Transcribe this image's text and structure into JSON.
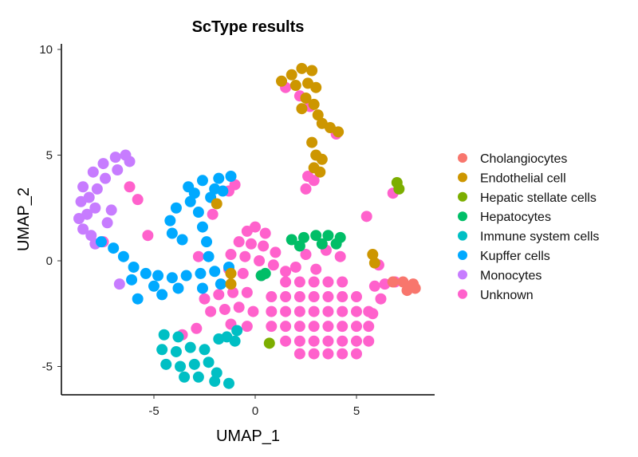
{
  "chart_data": {
    "type": "scatter",
    "title": "ScType results",
    "xlabel": "UMAP_1",
    "ylabel": "UMAP_2",
    "xlim": [
      -9.6,
      8.9
    ],
    "ylim": [
      -6.3,
      10.3
    ],
    "xticks": [
      -5,
      0,
      5
    ],
    "yticks": [
      -5,
      0,
      5,
      10
    ],
    "grid": false,
    "legend_position": "right",
    "series": [
      {
        "name": "Unknown",
        "color": "#FF61CC",
        "points": [
          [
            -0.4,
            1.4
          ],
          [
            0,
            1.6
          ],
          [
            0.5,
            1.3
          ],
          [
            -0.8,
            0.9
          ],
          [
            -0.2,
            0.8
          ],
          [
            0.4,
            0.7
          ],
          [
            1,
            0.4
          ],
          [
            -1.2,
            0.3
          ],
          [
            -0.5,
            0.2
          ],
          [
            0.2,
            0
          ],
          [
            0.9,
            -0.2
          ],
          [
            1.5,
            -0.5
          ],
          [
            -1.3,
            -0.4
          ],
          [
            -0.6,
            -0.6
          ],
          [
            0.3,
            -0.7
          ],
          [
            -2.5,
            -1.8
          ],
          [
            -1.8,
            -1.6
          ],
          [
            -1.1,
            -1.5
          ],
          [
            -0.4,
            -1.5
          ],
          [
            -2.2,
            -2.4
          ],
          [
            -1.5,
            -2.3
          ],
          [
            -0.8,
            -2.2
          ],
          [
            -0.1,
            -2.4
          ],
          [
            -1.2,
            -3
          ],
          [
            -0.4,
            -3.1
          ],
          [
            -2.9,
            -3.2
          ],
          [
            -3.6,
            -3.5
          ],
          [
            1.5,
            -1.0
          ],
          [
            2.2,
            -1.0
          ],
          [
            2.9,
            -1.0
          ],
          [
            3.6,
            -1.0
          ],
          [
            4.3,
            -1.0
          ],
          [
            0.8,
            -1.7
          ],
          [
            1.5,
            -1.7
          ],
          [
            2.2,
            -1.7
          ],
          [
            2.9,
            -1.7
          ],
          [
            3.6,
            -1.7
          ],
          [
            4.3,
            -1.7
          ],
          [
            5.0,
            -1.7
          ],
          [
            0.8,
            -2.4
          ],
          [
            1.5,
            -2.4
          ],
          [
            2.2,
            -2.4
          ],
          [
            2.9,
            -2.4
          ],
          [
            3.6,
            -2.4
          ],
          [
            4.3,
            -2.4
          ],
          [
            5.0,
            -2.4
          ],
          [
            5.6,
            -2.4
          ],
          [
            0.8,
            -3.1
          ],
          [
            1.5,
            -3.1
          ],
          [
            2.2,
            -3.1
          ],
          [
            2.9,
            -3.1
          ],
          [
            3.6,
            -3.1
          ],
          [
            4.3,
            -3.1
          ],
          [
            5.0,
            -3.1
          ],
          [
            5.6,
            -3.1
          ],
          [
            1.5,
            -3.8
          ],
          [
            2.2,
            -3.8
          ],
          [
            2.9,
            -3.8
          ],
          [
            3.6,
            -3.8
          ],
          [
            4.3,
            -3.8
          ],
          [
            5.0,
            -3.8
          ],
          [
            5.6,
            -3.8
          ],
          [
            2.2,
            -4.4
          ],
          [
            2.9,
            -4.4
          ],
          [
            3.6,
            -4.4
          ],
          [
            4.3,
            -4.4
          ],
          [
            5.0,
            -4.4
          ],
          [
            2.5,
            0.3
          ],
          [
            3.5,
            0.5
          ],
          [
            4.2,
            0.2
          ],
          [
            3,
            -0.4
          ],
          [
            2,
            -0.3
          ],
          [
            5.9,
            -1.2
          ],
          [
            6.4,
            -1.1
          ],
          [
            6.9,
            -1.0
          ],
          [
            6.2,
            -1.8
          ],
          [
            5.8,
            -2.5
          ],
          [
            5.5,
            2.1
          ],
          [
            6.1,
            -0.2
          ],
          [
            1.5,
            8.2
          ],
          [
            2.2,
            7.8
          ],
          [
            2.7,
            7.3
          ],
          [
            2.6,
            4
          ],
          [
            2.5,
            3.4
          ],
          [
            2.9,
            3.8
          ],
          [
            4,
            6
          ],
          [
            -7.5,
            0.9
          ],
          [
            -6.2,
            3.5
          ],
          [
            -5.8,
            2.9
          ],
          [
            -5.3,
            1.2
          ],
          [
            -1.3,
            3.3
          ],
          [
            -1,
            3.6
          ],
          [
            -2.1,
            2.2
          ],
          [
            -2.8,
            0.2
          ],
          [
            6.8,
            3.2
          ]
        ]
      },
      {
        "name": "Monocytes",
        "color": "#C77CFF",
        "points": [
          [
            -7.5,
            4.6
          ],
          [
            -6.9,
            4.9
          ],
          [
            -6.4,
            5.0
          ],
          [
            -6.2,
            4.7
          ],
          [
            -8.0,
            4.2
          ],
          [
            -8.5,
            3.5
          ],
          [
            -8.6,
            2.8
          ],
          [
            -8.7,
            2.0
          ],
          [
            -8.5,
            1.5
          ],
          [
            -8.1,
            1.2
          ],
          [
            -7.9,
            2.5
          ],
          [
            -7.8,
            3.4
          ],
          [
            -7.4,
            3.9
          ],
          [
            -7.3,
            1.8
          ],
          [
            -7.1,
            2.4
          ],
          [
            -6.8,
            4.3
          ],
          [
            -7.9,
            0.8
          ],
          [
            -6.7,
            -1.1
          ],
          [
            -8.2,
            3.0
          ],
          [
            -8.3,
            2.2
          ]
        ]
      },
      {
        "name": "Kupffer cells",
        "color": "#00A9FF",
        "points": [
          [
            -7.6,
            0.9
          ],
          [
            -7.0,
            0.6
          ],
          [
            -6.5,
            0.2
          ],
          [
            -6.0,
            -0.3
          ],
          [
            -5.4,
            -0.6
          ],
          [
            -4.8,
            -0.7
          ],
          [
            -4.1,
            -0.8
          ],
          [
            -3.4,
            -0.7
          ],
          [
            -2.7,
            -0.6
          ],
          [
            -2.0,
            -0.5
          ],
          [
            -1.3,
            -0.3
          ],
          [
            -6.1,
            -0.9
          ],
          [
            -5.0,
            -1.2
          ],
          [
            -3.8,
            -1.3
          ],
          [
            -2.6,
            -1.3
          ],
          [
            -1.7,
            -1.1
          ],
          [
            -2.3,
            0.2
          ],
          [
            -2.4,
            0.9
          ],
          [
            -2.6,
            1.6
          ],
          [
            -2.8,
            2.3
          ],
          [
            -3.2,
            2.8
          ],
          [
            -3.3,
            3.5
          ],
          [
            -2.6,
            3.8
          ],
          [
            -1.8,
            3.9
          ],
          [
            -1.2,
            4.0
          ],
          [
            -3.9,
            2.5
          ],
          [
            -4.2,
            1.9
          ],
          [
            -4.1,
            1.3
          ],
          [
            -3.6,
            1.0
          ],
          [
            -1.6,
            3.3
          ],
          [
            -2.0,
            3.4
          ],
          [
            -4.6,
            -1.6
          ],
          [
            -5.8,
            -1.8
          ],
          [
            -3.0,
            3.2
          ],
          [
            -2.2,
            3.0
          ]
        ]
      },
      {
        "name": "Immune system cells",
        "color": "#00BFC4",
        "points": [
          [
            -4.5,
            -3.5
          ],
          [
            -3.8,
            -3.6
          ],
          [
            -4.6,
            -4.2
          ],
          [
            -3.9,
            -4.3
          ],
          [
            -3.2,
            -4.1
          ],
          [
            -2.5,
            -4.2
          ],
          [
            -4.4,
            -4.9
          ],
          [
            -3.7,
            -5.0
          ],
          [
            -3.0,
            -4.9
          ],
          [
            -2.3,
            -4.8
          ],
          [
            -3.5,
            -5.5
          ],
          [
            -2.8,
            -5.5
          ],
          [
            -1.4,
            -3.6
          ],
          [
            -0.9,
            -3.3
          ],
          [
            -1.0,
            -3.8
          ],
          [
            -1.8,
            -3.7
          ],
          [
            -2.0,
            -5.7
          ],
          [
            -1.9,
            -5.3
          ],
          [
            -1.3,
            -5.8
          ]
        ]
      },
      {
        "name": "Hepatocytes",
        "color": "#00BE67",
        "points": [
          [
            1.8,
            1.0
          ],
          [
            2.4,
            1.1
          ],
          [
            3.0,
            1.2
          ],
          [
            3.6,
            1.2
          ],
          [
            4.2,
            1.1
          ],
          [
            2.2,
            0.7
          ],
          [
            3.3,
            0.8
          ],
          [
            4.0,
            0.8
          ],
          [
            0.3,
            -0.7
          ],
          [
            0.5,
            -0.6
          ]
        ]
      },
      {
        "name": "Hepatic stellate cells",
        "color": "#7CAE00",
        "points": [
          [
            7.0,
            3.7
          ],
          [
            7.1,
            3.4
          ],
          [
            0.7,
            -3.9
          ]
        ]
      },
      {
        "name": "Endothelial cell",
        "color": "#CD9600",
        "points": [
          [
            1.8,
            8.8
          ],
          [
            2.3,
            9.1
          ],
          [
            2.8,
            9.0
          ],
          [
            1.3,
            8.5
          ],
          [
            2.0,
            8.3
          ],
          [
            2.6,
            8.4
          ],
          [
            3.0,
            8.2
          ],
          [
            2.5,
            7.7
          ],
          [
            2.9,
            7.4
          ],
          [
            3.1,
            6.9
          ],
          [
            3.3,
            6.5
          ],
          [
            3.7,
            6.3
          ],
          [
            4.1,
            6.1
          ],
          [
            2.3,
            7.2
          ],
          [
            2.8,
            5.6
          ],
          [
            3.0,
            5.0
          ],
          [
            3.3,
            4.8
          ],
          [
            2.9,
            4.4
          ],
          [
            3.2,
            4.2
          ],
          [
            5.8,
            0.3
          ],
          [
            5.9,
            -0.1
          ],
          [
            -1.9,
            2.7
          ],
          [
            -1.2,
            -0.6
          ],
          [
            -1.2,
            -1.1
          ]
        ]
      },
      {
        "name": "Cholangiocytes",
        "color": "#F8766D",
        "points": [
          [
            6.8,
            -1.0
          ],
          [
            7.3,
            -1.0
          ],
          [
            7.8,
            -1.1
          ],
          [
            7.5,
            -1.4
          ],
          [
            7.9,
            -1.3
          ]
        ]
      }
    ],
    "legend": [
      {
        "name": "Cholangiocytes",
        "color": "#F8766D"
      },
      {
        "name": "Endothelial cell",
        "color": "#CD9600"
      },
      {
        "name": "Hepatic stellate cells",
        "color": "#7CAE00"
      },
      {
        "name": "Hepatocytes",
        "color": "#00BE67"
      },
      {
        "name": "Immune system cells",
        "color": "#00BFC4"
      },
      {
        "name": "Kupffer cells",
        "color": "#00A9FF"
      },
      {
        "name": "Monocytes",
        "color": "#C77CFF"
      },
      {
        "name": "Unknown",
        "color": "#FF61CC"
      }
    ]
  }
}
